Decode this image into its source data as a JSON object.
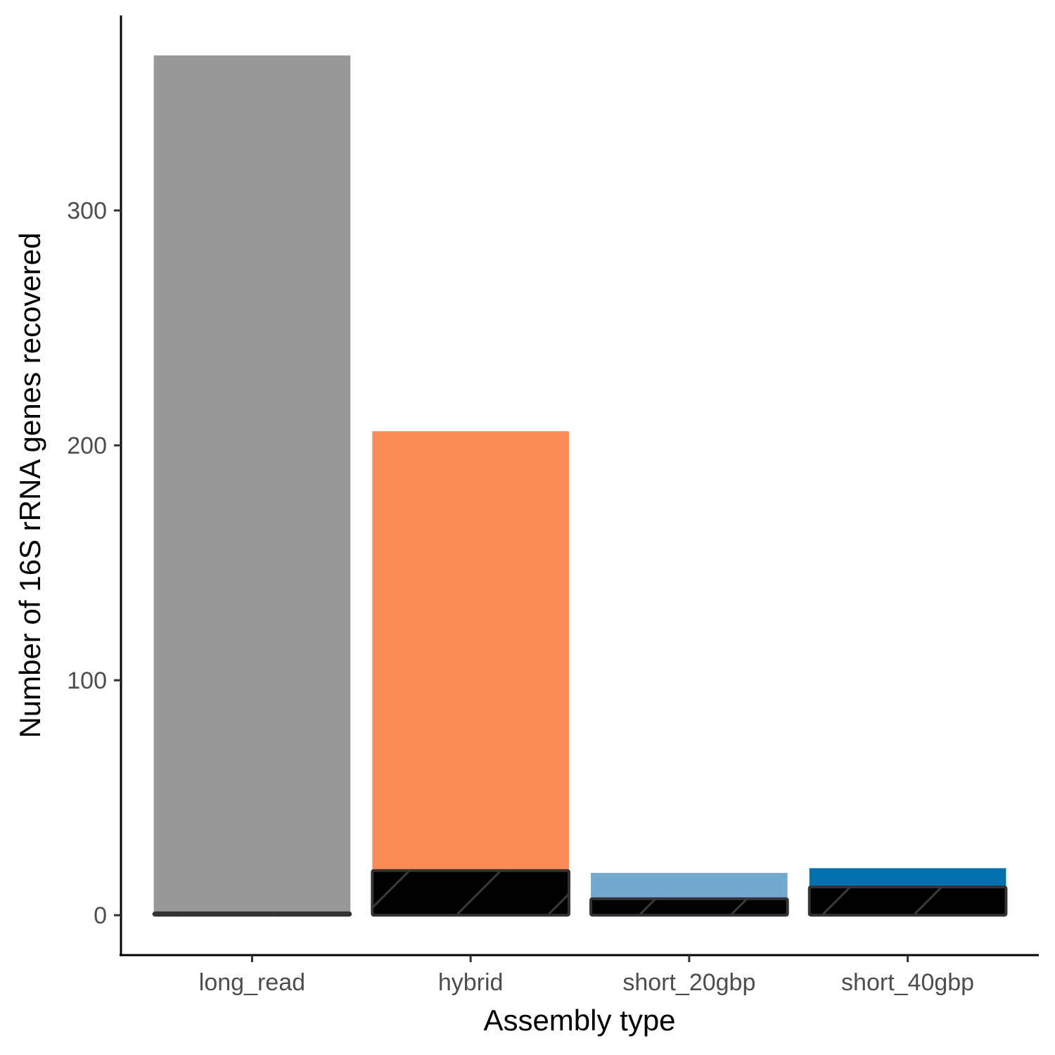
{
  "chart_data": {
    "type": "bar",
    "xlabel": "Assembly type",
    "ylabel": "Number of 16S rRNA genes recovered",
    "categories": [
      "long_read",
      "hybrid",
      "short_20gbp",
      "short_40gbp"
    ],
    "series": [
      {
        "values": [
          366,
          206,
          18,
          20
        ],
        "colors": [
          "#999999",
          "#FC8D59",
          "#74A9CF",
          "#0570B0"
        ]
      },
      {
        "values": [
          1,
          19,
          7,
          12
        ],
        "colors": [
          "#000000",
          "#000000",
          "#000000",
          "#000000"
        ],
        "pattern": "hatched"
      }
    ],
    "yticks": [
      0,
      100,
      200,
      300
    ],
    "ylim": [
      -17,
      383
    ],
    "grid": false,
    "legend": "none"
  }
}
